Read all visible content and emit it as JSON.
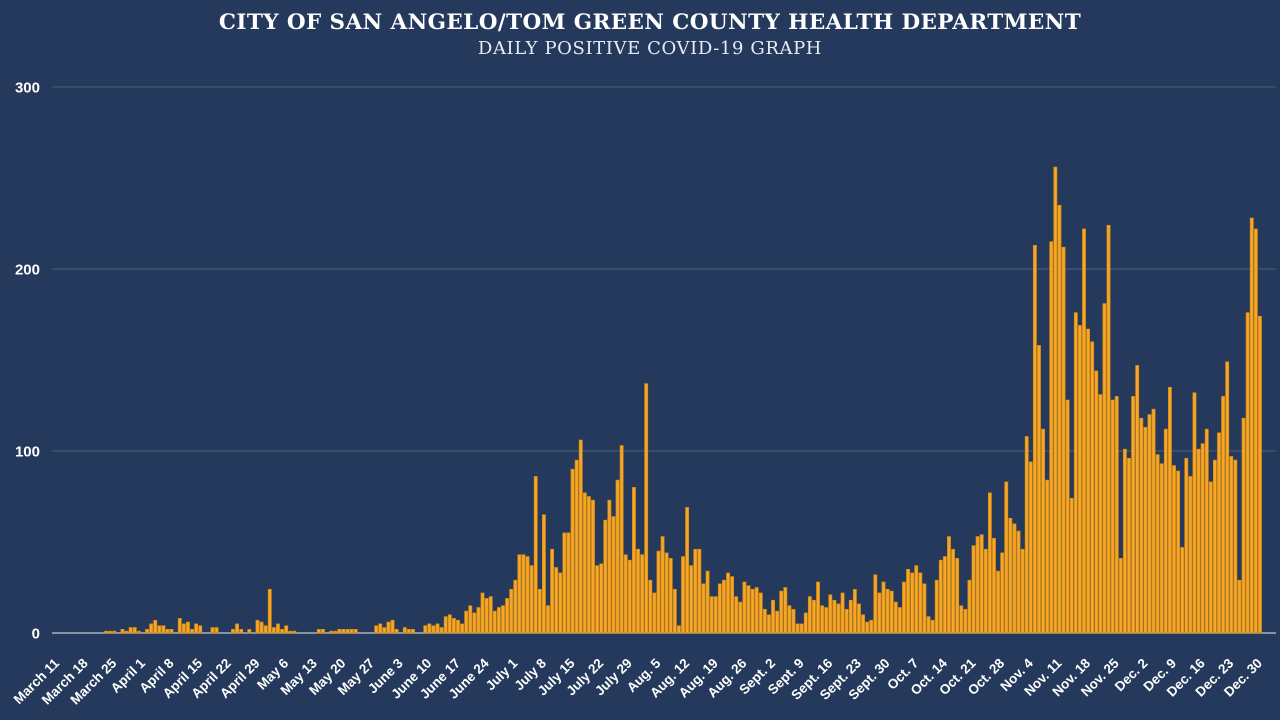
{
  "header": {
    "title": "CITY OF SAN ANGELO/TOM GREEN COUNTY HEALTH DEPARTMENT",
    "subtitle": "DAILY POSITIVE COVID-19 GRAPH"
  },
  "colors": {
    "background": "#24395B",
    "bar_fill": "#F7A62A",
    "bar_stroke": "#D28C10",
    "gridline": "#4D5F7D",
    "baseline": "#A9B1BC",
    "text": "#FFFFFF"
  },
  "chart_data": {
    "type": "bar",
    "title": "CITY OF SAN ANGELO/TOM GREEN COUNTY HEALTH DEPARTMENT",
    "subtitle": "DAILY POSITIVE COVID-19 GRAPH",
    "xlabel": "",
    "ylabel": "",
    "ylim": [
      0,
      300
    ],
    "y_ticks": [
      0,
      100,
      200,
      300
    ],
    "grid": "horizontal",
    "legend": "none",
    "frequency": "daily",
    "start_date": "March 11",
    "end_date": "Dec. 30",
    "tick_every_days": 7,
    "tick_labels": [
      "March 11",
      "March 18",
      "March 25",
      "April 1",
      "April 8",
      "April 15",
      "April 22",
      "April 29",
      "May 6",
      "May 13",
      "May 20",
      "May 27",
      "June 3",
      "June 10",
      "June 17",
      "June 24",
      "July 1",
      "July 8",
      "July 15",
      "July 22",
      "July 29",
      "Aug. 5",
      "Aug. 12",
      "Aug. 19",
      "Aug. 26",
      "Sept. 2",
      "Sept. 9",
      "Sept. 16",
      "Sept. 23",
      "Sept. 30",
      "Oct. 7",
      "Oct. 14",
      "Oct. 21",
      "Oct. 28",
      "Nov. 4",
      "Nov. 11",
      "Nov. 18",
      "Nov. 25",
      "Dec. 2",
      "Dec. 9",
      "Dec. 16",
      "Dec. 23",
      "Dec. 30"
    ],
    "values": [
      0,
      0,
      0,
      0,
      0,
      0,
      0,
      0,
      0,
      0,
      0,
      0,
      1,
      1,
      1,
      0,
      2,
      1,
      3,
      3,
      1,
      0,
      2,
      5,
      7,
      4,
      4,
      2,
      2,
      0,
      8,
      5,
      6,
      2,
      5,
      4,
      0,
      0,
      3,
      3,
      0,
      0,
      0,
      2,
      5,
      2,
      0,
      2,
      0,
      7,
      6,
      4,
      24,
      3,
      5,
      2,
      4,
      1,
      1,
      0,
      0,
      0,
      0,
      0,
      2,
      2,
      0,
      1,
      1,
      2,
      2,
      2,
      2,
      2,
      0,
      0,
      0,
      0,
      4,
      5,
      3,
      6,
      7,
      2,
      0,
      3,
      2,
      2,
      0,
      0,
      4,
      5,
      4,
      5,
      3,
      9,
      10,
      8,
      7,
      5,
      12,
      15,
      11,
      14,
      22,
      19,
      20,
      12,
      14,
      15,
      19,
      24,
      29,
      43,
      43,
      42,
      37,
      86,
      24,
      65,
      15,
      46,
      36,
      33,
      55,
      55,
      90,
      95,
      106,
      77,
      75,
      73,
      37,
      38,
      62,
      73,
      64,
      84,
      103,
      43,
      40,
      80,
      46,
      43,
      137,
      29,
      22,
      45,
      53,
      44,
      41,
      24,
      4,
      42,
      69,
      37,
      46,
      46,
      27,
      34,
      20,
      20,
      27,
      29,
      33,
      31,
      20,
      17,
      28,
      26,
      24,
      25,
      22,
      13,
      10,
      18,
      12,
      23,
      25,
      15,
      13,
      5,
      5,
      11,
      20,
      18,
      28,
      15,
      14,
      21,
      18,
      16,
      22,
      13,
      18,
      24,
      16,
      10,
      6,
      7,
      32,
      22,
      28,
      24,
      23,
      17,
      14,
      28,
      35,
      33,
      37,
      33,
      27,
      9,
      7,
      29,
      40,
      42,
      53,
      46,
      41,
      15,
      13,
      29,
      48,
      53,
      54,
      46,
      77,
      52,
      34,
      44,
      83,
      63,
      60,
      56,
      46,
      108,
      94,
      213,
      158,
      112,
      84,
      215,
      256,
      235,
      212,
      128,
      74,
      176,
      169,
      222,
      167,
      160,
      144,
      131,
      181,
      224,
      128,
      130,
      41,
      101,
      96,
      130,
      147,
      118,
      113,
      120,
      123,
      98,
      93,
      112,
      135,
      92,
      89,
      47,
      96,
      86,
      132,
      101,
      104,
      112,
      83,
      95,
      110,
      130,
      149,
      97,
      95,
      29,
      118,
      176,
      228,
      222,
      174
    ]
  }
}
